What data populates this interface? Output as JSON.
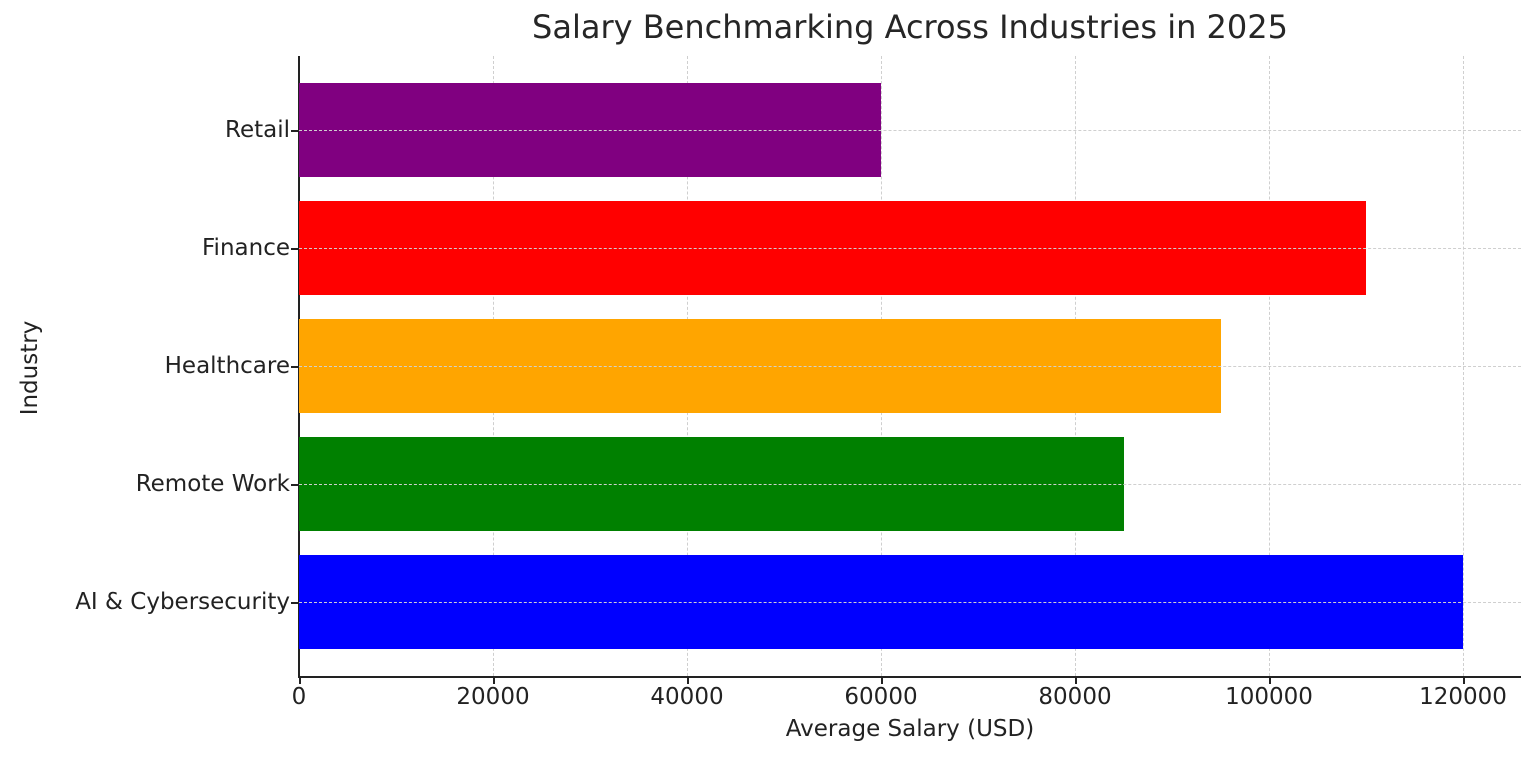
{
  "chart_data": {
    "type": "bar",
    "orientation": "horizontal",
    "title": "Salary Benchmarking Across Industries in 2025",
    "xlabel": "Average Salary (USD)",
    "ylabel": "Industry",
    "categories": [
      "AI & Cybersecurity",
      "Remote Work",
      "Healthcare",
      "Finance",
      "Retail"
    ],
    "values": [
      120000,
      85000,
      95000,
      110000,
      60000
    ],
    "colors": [
      "#0000ff",
      "#008000",
      "#ffa500",
      "#ff0000",
      "#800080"
    ],
    "xlim": [
      0,
      126000
    ],
    "xticks": [
      "0",
      "20000",
      "40000",
      "60000",
      "80000",
      "100000",
      "120000"
    ],
    "grid": true,
    "grid_style": "dashed",
    "legend": null
  }
}
